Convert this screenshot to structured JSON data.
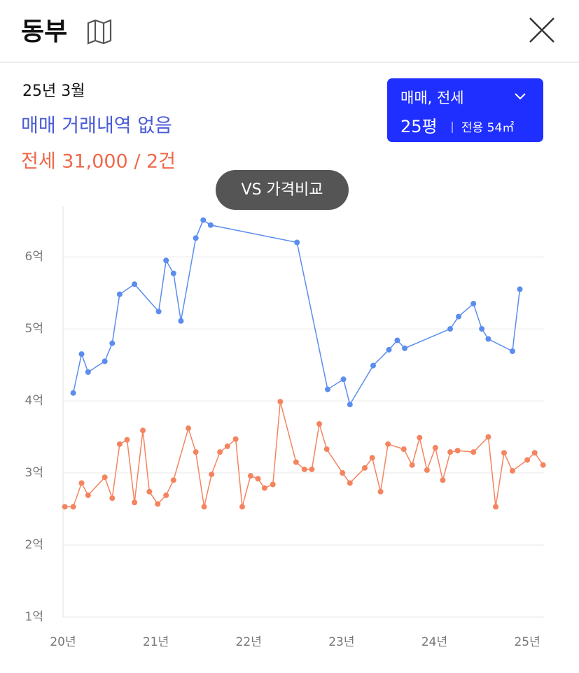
{
  "header": {
    "title": "동부"
  },
  "info": {
    "date": "25년 3월",
    "sale": "매매 거래내역 없음",
    "lease": "전세 31,000 / 2건"
  },
  "filter": {
    "type": "매매, 전세",
    "size": "25평",
    "area": "전용 54㎡"
  },
  "compare_button": "VS 가격비교",
  "chart_data": {
    "type": "line",
    "xlim": [
      20,
      25.18
    ],
    "ylim": [
      1,
      6.7
    ],
    "xticks": [
      {
        "value": 20,
        "label": "20년"
      },
      {
        "value": 21,
        "label": "21년"
      },
      {
        "value": 22,
        "label": "22년"
      },
      {
        "value": 23,
        "label": "23년"
      },
      {
        "value": 24,
        "label": "24년"
      },
      {
        "value": 25,
        "label": "25년"
      }
    ],
    "yticks": [
      {
        "value": 1,
        "label": "1억"
      },
      {
        "value": 2,
        "label": "2억"
      },
      {
        "value": 3,
        "label": "3억"
      },
      {
        "value": 4,
        "label": "4억"
      },
      {
        "value": 5,
        "label": "5억"
      },
      {
        "value": 6,
        "label": "6억"
      }
    ],
    "grid": true,
    "series": [
      {
        "color": "#5b8def",
        "x": [
          20.11,
          20.2,
          20.27,
          20.45,
          20.53,
          20.61,
          20.77,
          21.03,
          21.11,
          21.19,
          21.27,
          21.43,
          21.51,
          21.59,
          22.52,
          22.85,
          23.02,
          23.09,
          23.34,
          23.51,
          23.6,
          23.68,
          24.17,
          24.26,
          24.42,
          24.51,
          24.58,
          24.84,
          24.92
        ],
        "values": [
          4.11,
          4.65,
          4.4,
          4.55,
          4.8,
          5.48,
          5.62,
          5.24,
          5.95,
          5.77,
          5.11,
          6.26,
          6.51,
          6.44,
          6.2,
          4.16,
          4.3,
          3.95,
          4.49,
          4.71,
          4.84,
          4.73,
          5.0,
          5.17,
          5.35,
          5.0,
          4.86,
          4.69,
          5.55
        ]
      },
      {
        "color": "#f4845f",
        "x": [
          20.02,
          20.11,
          20.2,
          20.27,
          20.45,
          20.53,
          20.61,
          20.69,
          20.77,
          20.86,
          20.93,
          21.02,
          21.11,
          21.19,
          21.35,
          21.43,
          21.52,
          21.6,
          21.69,
          21.77,
          21.86,
          21.93,
          22.02,
          22.1,
          22.17,
          22.26,
          22.34,
          22.51,
          22.6,
          22.68,
          22.76,
          22.84,
          23.01,
          23.09,
          23.25,
          23.33,
          23.42,
          23.5,
          23.67,
          23.76,
          23.84,
          23.92,
          24.01,
          24.09,
          24.17,
          24.25,
          24.42,
          24.58,
          24.66,
          24.75,
          24.84,
          25.0,
          25.08,
          25.17
        ],
        "values": [
          2.53,
          2.53,
          2.86,
          2.69,
          2.94,
          2.65,
          3.4,
          3.46,
          2.59,
          3.59,
          2.74,
          2.57,
          2.69,
          2.9,
          3.62,
          3.29,
          2.53,
          2.98,
          3.29,
          3.37,
          3.47,
          2.53,
          2.96,
          2.92,
          2.79,
          2.84,
          3.99,
          3.15,
          3.05,
          3.05,
          3.68,
          3.33,
          3.0,
          2.86,
          3.07,
          3.21,
          2.74,
          3.4,
          3.33,
          3.11,
          3.49,
          3.04,
          3.35,
          2.9,
          3.29,
          3.31,
          3.29,
          3.5,
          2.53,
          3.28,
          3.03,
          3.18,
          3.28,
          3.11
        ]
      }
    ]
  }
}
